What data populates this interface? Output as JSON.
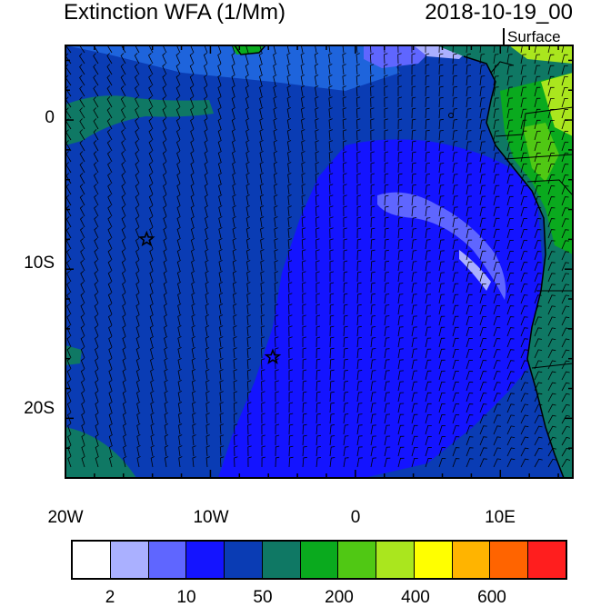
{
  "header": {
    "title": "Extinction WFA (1/Mm)",
    "datetime": "2018-10-19_00",
    "level": "Surface"
  },
  "map": {
    "lat_labels": [
      "0",
      "10S",
      "20S"
    ],
    "lon_labels": [
      "20W",
      "10W",
      "0",
      "10E"
    ],
    "extent": {
      "lon_min": -20,
      "lon_max": 15,
      "lat_min": -24,
      "lat_max": 5
    },
    "markers": [
      {
        "type": "star",
        "lon": -14.4,
        "lat": -8.0
      },
      {
        "type": "star",
        "lon": -5.7,
        "lat": -15.9
      }
    ]
  },
  "colorbar": {
    "colors": [
      "#ffffff",
      "#aab0ff",
      "#5f66ff",
      "#1414ff",
      "#0a3cb4",
      "#0f7864",
      "#0aaa1e",
      "#50c814",
      "#aae61e",
      "#ffff00",
      "#ffb400",
      "#ff6400",
      "#ff1e1e"
    ],
    "tick_labels": [
      "2",
      "10",
      "50",
      "200",
      "400",
      "600"
    ]
  }
}
